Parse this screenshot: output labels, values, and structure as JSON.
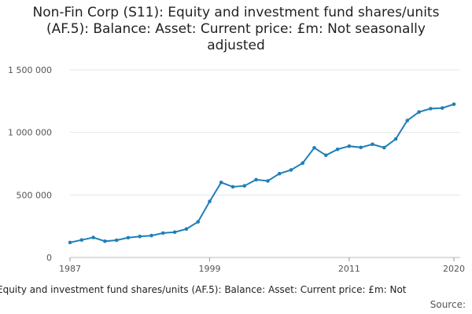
{
  "chart_data": {
    "type": "line",
    "title": "Non-Fin Corp (S11): Equity and investment fund shares/units (AF.5): Balance: Asset: Current price: £m: Not seasonally adjusted",
    "ylim": [
      0,
      1500000
    ],
    "yticks": [
      0,
      500000,
      1000000,
      1500000
    ],
    "ytick_labels": [
      "0",
      "500 000",
      "1 000 000",
      "1 500 000"
    ],
    "xlim": [
      1987,
      2020
    ],
    "xticks": [
      1987,
      1999,
      2011,
      2020
    ],
    "xtick_labels": [
      "1987",
      "1999",
      "2011",
      "2020"
    ],
    "grid": true,
    "legend_position": "bottom",
    "series": [
      {
        "name": "Equity and investment fund shares/units (AF.5): Balance: Asset: Current price: £m: Not",
        "color": "#1f7fb8",
        "x": [
          1987,
          1988,
          1989,
          1990,
          1991,
          1992,
          1993,
          1994,
          1995,
          1996,
          1997,
          1998,
          1999,
          2000,
          2001,
          2002,
          2003,
          2004,
          2005,
          2006,
          2007,
          2008,
          2009,
          2010,
          2011,
          2012,
          2013,
          2014,
          2015,
          2016,
          2017,
          2018,
          2019,
          2020
        ],
        "values": [
          120000,
          140000,
          160000,
          130000,
          138000,
          158000,
          168000,
          175000,
          195000,
          203000,
          228000,
          285000,
          448000,
          600000,
          565000,
          573000,
          622000,
          612000,
          670000,
          700000,
          755000,
          877000,
          817000,
          865000,
          890000,
          880000,
          905000,
          878000,
          948000,
          1095000,
          1163000,
          1190000,
          1195000,
          1225000
        ]
      }
    ]
  },
  "source_label": "Source:"
}
